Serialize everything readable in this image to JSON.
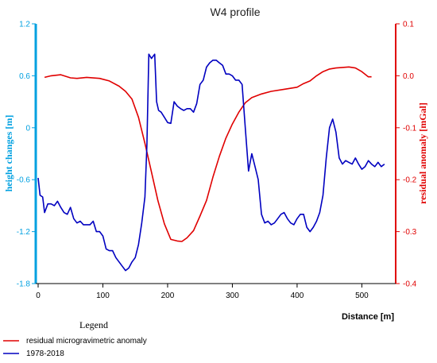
{
  "chart_data": {
    "type": "line",
    "title": "W4 profile",
    "xlabel": "Distance [m]",
    "ylabel_left": "height changes [m]",
    "ylabel_right": "residual anomaly [mGal]",
    "xlim": [
      0,
      540
    ],
    "ylim_left": [
      -1.8,
      1.2
    ],
    "ylim_right": [
      -0.4,
      0.1
    ],
    "x_ticks": [
      "0",
      "100",
      "200",
      "300",
      "400",
      "500"
    ],
    "y_ticks_left": [
      "1.2",
      "0.6",
      "0",
      "-0.6",
      "-1.2",
      "-1.8"
    ],
    "y_ticks_right": [
      "0.1",
      "0.0",
      "-0.1",
      "-0.2",
      "-0.3",
      "-0.4"
    ],
    "legend_title": "Legend",
    "grid": false,
    "series": [
      {
        "name": "residual microgravimetric anomaly",
        "color": "#e00000",
        "axis": "right",
        "x": [
          10,
          20,
          35,
          50,
          60,
          75,
          95,
          110,
          125,
          135,
          145,
          155,
          165,
          175,
          185,
          195,
          205,
          215,
          222,
          230,
          240,
          250,
          260,
          270,
          280,
          290,
          300,
          310,
          320,
          330,
          345,
          360,
          380,
          400,
          410,
          420,
          430,
          440,
          450,
          460,
          470,
          480,
          490,
          500,
          510,
          515
        ],
        "y": [
          -0.003,
          0.0,
          0.002,
          -0.004,
          -0.005,
          -0.003,
          -0.005,
          -0.01,
          -0.02,
          -0.03,
          -0.045,
          -0.08,
          -0.13,
          -0.185,
          -0.24,
          -0.285,
          -0.315,
          -0.318,
          -0.319,
          -0.312,
          -0.298,
          -0.27,
          -0.24,
          -0.195,
          -0.155,
          -0.12,
          -0.093,
          -0.07,
          -0.052,
          -0.042,
          -0.035,
          -0.03,
          -0.026,
          -0.022,
          -0.015,
          -0.01,
          0.0,
          0.008,
          0.013,
          0.015,
          0.016,
          0.017,
          0.015,
          0.008,
          -0.002,
          -0.002
        ]
      },
      {
        "name": "1978-2018",
        "color": "#0000c0",
        "axis": "left",
        "x": [
          0,
          3,
          7,
          10,
          15,
          20,
          25,
          30,
          35,
          40,
          45,
          50,
          55,
          60,
          65,
          70,
          75,
          80,
          85,
          90,
          95,
          100,
          105,
          110,
          115,
          120,
          125,
          130,
          135,
          140,
          145,
          150,
          155,
          160,
          165,
          168,
          171,
          175,
          180,
          183,
          186,
          190,
          195,
          200,
          205,
          210,
          215,
          220,
          225,
          230,
          235,
          240,
          245,
          250,
          255,
          260,
          265,
          270,
          275,
          280,
          285,
          290,
          295,
          300,
          305,
          310,
          315,
          320,
          325,
          330,
          335,
          340,
          345,
          350,
          355,
          360,
          365,
          370,
          375,
          380,
          385,
          390,
          395,
          400,
          405,
          410,
          415,
          420,
          425,
          430,
          435,
          440,
          445,
          450,
          455,
          460,
          465,
          470,
          475,
          480,
          485,
          490,
          495,
          500,
          505,
          510,
          515,
          520,
          525,
          530,
          535
        ],
        "y": [
          -0.58,
          -0.78,
          -0.8,
          -0.98,
          -0.88,
          -0.88,
          -0.9,
          -0.85,
          -0.92,
          -0.98,
          -1.0,
          -0.92,
          -1.05,
          -1.1,
          -1.08,
          -1.12,
          -1.12,
          -1.12,
          -1.08,
          -1.2,
          -1.2,
          -1.25,
          -1.4,
          -1.42,
          -1.42,
          -1.5,
          -1.55,
          -1.6,
          -1.65,
          -1.62,
          -1.55,
          -1.5,
          -1.35,
          -1.1,
          -0.8,
          -0.2,
          0.85,
          0.8,
          0.85,
          0.3,
          0.2,
          0.18,
          0.12,
          0.06,
          0.05,
          0.3,
          0.25,
          0.22,
          0.2,
          0.22,
          0.22,
          0.18,
          0.28,
          0.5,
          0.55,
          0.7,
          0.75,
          0.78,
          0.78,
          0.75,
          0.72,
          0.62,
          0.62,
          0.6,
          0.55,
          0.55,
          0.5,
          0.0,
          -0.5,
          -0.3,
          -0.45,
          -0.6,
          -1.0,
          -1.1,
          -1.08,
          -1.12,
          -1.1,
          -1.05,
          -1.0,
          -0.98,
          -1.05,
          -1.1,
          -1.12,
          -1.05,
          -1.0,
          -1.0,
          -1.15,
          -1.2,
          -1.15,
          -1.08,
          -0.98,
          -0.78,
          -0.35,
          0.0,
          0.1,
          -0.05,
          -0.35,
          -0.42,
          -0.38,
          -0.4,
          -0.42,
          -0.35,
          -0.42,
          -0.48,
          -0.45,
          -0.38,
          -0.42,
          -0.45,
          -0.4,
          -0.45,
          -0.42
        ]
      }
    ]
  }
}
